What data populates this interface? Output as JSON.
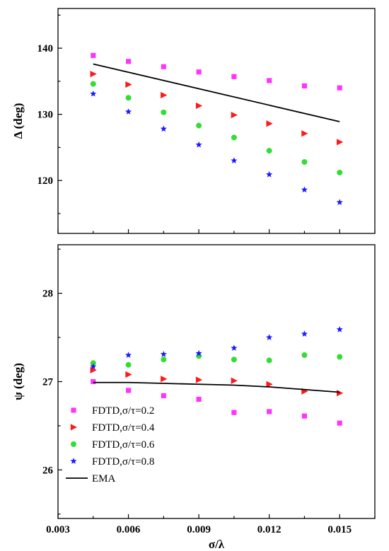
{
  "chart_data": [
    {
      "type": "scatter",
      "title": "",
      "xlabel": "",
      "ylabel": "Δ (deg)",
      "xlim": [
        0.003,
        0.0165
      ],
      "ylim": [
        112,
        146
      ],
      "grid": false,
      "x": [
        0.0045,
        0.006,
        0.0075,
        0.009,
        0.0105,
        0.012,
        0.0135,
        0.015
      ],
      "xticks": [
        0.003,
        0.006,
        0.009,
        0.012,
        0.015
      ],
      "yticks": [
        120,
        130,
        140
      ],
      "ytick_labels": [
        "120",
        "130",
        "140"
      ],
      "series": [
        {
          "name": "FDTD,σ/τ=0.2",
          "marker": "square",
          "color": "#ff33ff",
          "values": [
            138.9,
            138.0,
            137.2,
            136.4,
            135.7,
            135.1,
            134.3,
            134.0
          ]
        },
        {
          "name": "FDTD,σ/τ=0.4",
          "marker": "triangle-right",
          "color": "#ff1a1a",
          "values": [
            136.1,
            134.5,
            132.9,
            131.3,
            129.9,
            128.6,
            127.1,
            125.8
          ]
        },
        {
          "name": "FDTD,σ/τ=0.6",
          "marker": "circle",
          "color": "#33dd33",
          "values": [
            134.6,
            132.5,
            130.3,
            128.3,
            126.5,
            124.5,
            122.8,
            121.2
          ]
        },
        {
          "name": "FDTD,σ/τ=0.8",
          "marker": "star",
          "color": "#1a1aff",
          "values": [
            133.1,
            130.4,
            127.8,
            125.4,
            123.0,
            120.9,
            118.6,
            116.7
          ]
        },
        {
          "name": "EMA",
          "marker": "line",
          "color": "#000000",
          "values": [
            137.6,
            null,
            null,
            null,
            null,
            null,
            null,
            128.9
          ]
        }
      ]
    },
    {
      "type": "scatter",
      "title": "",
      "xlabel": "σ/λ",
      "ylabel": "ψ (deg)",
      "xlim": [
        0.003,
        0.0165
      ],
      "ylim": [
        25.45,
        28.55
      ],
      "grid": false,
      "x": [
        0.0045,
        0.006,
        0.0075,
        0.009,
        0.0105,
        0.012,
        0.0135,
        0.015
      ],
      "xticks": [
        0.003,
        0.006,
        0.009,
        0.012,
        0.015
      ],
      "xtick_labels": [
        "0.003",
        "0.006",
        "0.009",
        "0.012",
        "0.015"
      ],
      "yticks": [
        26,
        27,
        28
      ],
      "ytick_labels": [
        "26",
        "27",
        "28"
      ],
      "legend_position": "bottom-left",
      "series": [
        {
          "name": "FDTD,σ/τ=0.2",
          "marker": "square",
          "color": "#ff33ff",
          "values": [
            27.0,
            26.9,
            26.84,
            26.8,
            26.65,
            26.66,
            26.61,
            26.53
          ]
        },
        {
          "name": "FDTD,σ/τ=0.4",
          "marker": "triangle-right",
          "color": "#ff1a1a",
          "values": [
            27.13,
            27.08,
            27.03,
            27.02,
            27.01,
            26.97,
            26.89,
            26.87
          ]
        },
        {
          "name": "FDTD,σ/τ=0.6",
          "marker": "circle",
          "color": "#33dd33",
          "values": [
            27.21,
            27.19,
            27.25,
            27.29,
            27.25,
            27.24,
            27.3,
            27.28
          ]
        },
        {
          "name": "FDTD,σ/τ=0.8",
          "marker": "star",
          "color": "#1a1aff",
          "values": [
            27.17,
            27.3,
            27.31,
            27.32,
            27.38,
            27.5,
            27.54,
            27.59
          ]
        },
        {
          "name": "EMA",
          "marker": "line",
          "color": "#000000",
          "values": [
            26.99,
            26.99,
            26.98,
            26.97,
            26.96,
            26.94,
            26.91,
            26.88
          ]
        }
      ]
    }
  ]
}
